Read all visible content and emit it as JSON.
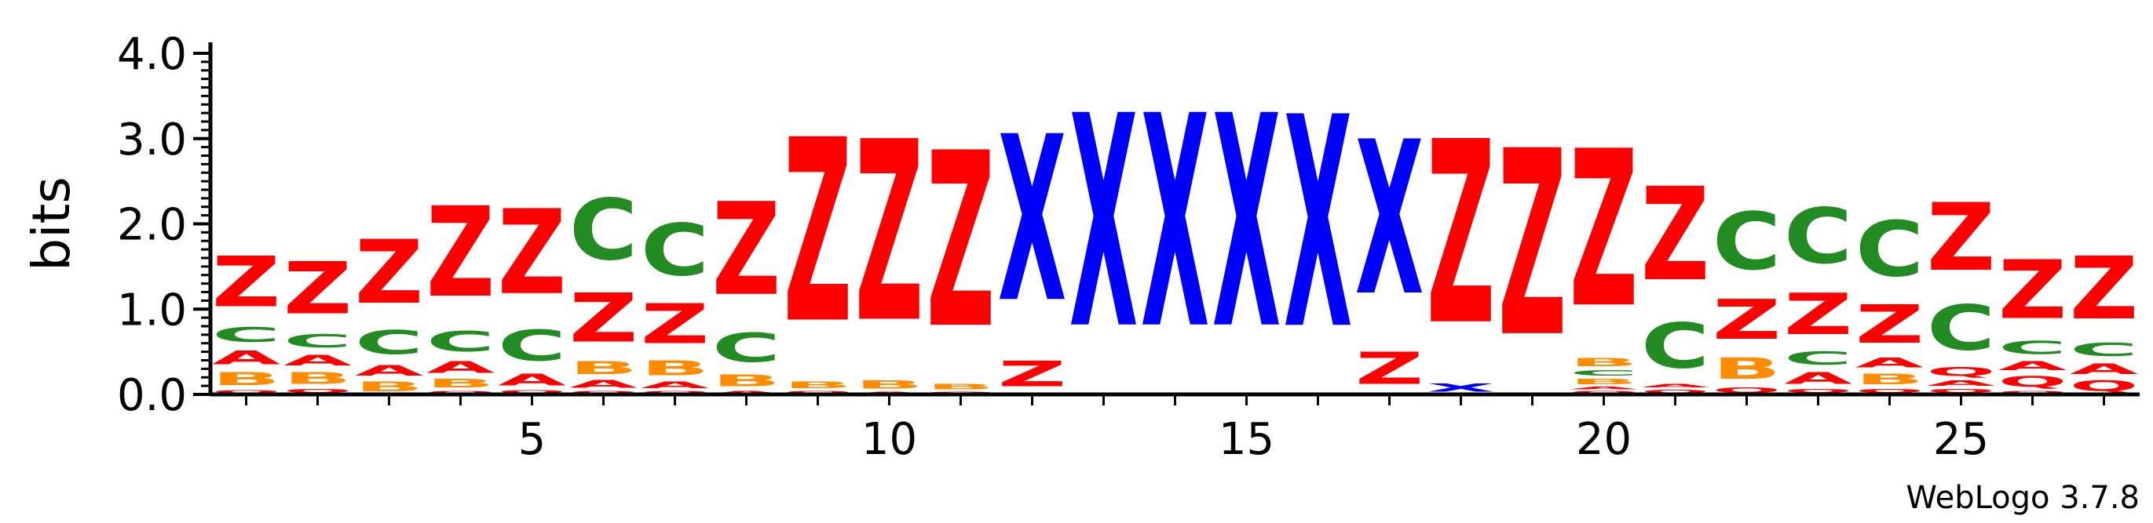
{
  "chart_data": {
    "type": "sequence-logo",
    "ylabel": "bits",
    "ylim": [
      0,
      4.0
    ],
    "yticks": [
      "0.0",
      "1.0",
      "2.0",
      "3.0",
      "4.0"
    ],
    "xticks": [
      5,
      10,
      15,
      20,
      25
    ],
    "credit": "WebLogo 3.7.8",
    "colors": {
      "Z": "#ff0000",
      "X": "#0000ff",
      "C": "#228b22",
      "A": "#ff0000",
      "B": "#ff8c00",
      "Q": "#ff0000"
    },
    "positions": [
      {
        "pos": 1,
        "letters": [
          [
            "Q",
            0.06
          ],
          [
            "B",
            0.24
          ],
          [
            "A",
            0.26
          ],
          [
            "C",
            0.28
          ],
          [
            "Z",
            0.95
          ]
        ]
      },
      {
        "pos": 2,
        "letters": [
          [
            "Q",
            0.08
          ],
          [
            "B",
            0.22
          ],
          [
            "A",
            0.2
          ],
          [
            "C",
            0.25
          ],
          [
            "Z",
            0.98
          ]
        ]
      },
      {
        "pos": 3,
        "letters": [
          [
            "B",
            0.18
          ],
          [
            "A",
            0.2
          ],
          [
            "C",
            0.45
          ],
          [
            "Z",
            1.2
          ]
        ]
      },
      {
        "pos": 4,
        "letters": [
          [
            "Q",
            0.05
          ],
          [
            "B",
            0.16
          ],
          [
            "A",
            0.22
          ],
          [
            "C",
            0.38
          ],
          [
            "Z",
            1.7
          ]
        ]
      },
      {
        "pos": 5,
        "letters": [
          [
            "Q",
            0.06
          ],
          [
            "A",
            0.22
          ],
          [
            "C",
            0.58
          ],
          [
            "Z",
            1.6
          ]
        ]
      },
      {
        "pos": 6,
        "letters": [
          [
            "Q",
            0.05
          ],
          [
            "A",
            0.14
          ],
          [
            "B",
            0.24
          ],
          [
            "Z",
            0.92
          ],
          [
            "C",
            1.15
          ]
        ]
      },
      {
        "pos": 7,
        "letters": [
          [
            "Q",
            0.05
          ],
          [
            "A",
            0.12
          ],
          [
            "B",
            0.28
          ],
          [
            "Z",
            0.75
          ],
          [
            "C",
            0.98
          ]
        ]
      },
      {
        "pos": 8,
        "letters": [
          [
            "A",
            0.05
          ],
          [
            "B",
            0.22
          ],
          [
            "C",
            0.55
          ],
          [
            "Z",
            1.75
          ]
        ]
      },
      {
        "pos": 9,
        "letters": [
          [
            "Q",
            0.05
          ],
          [
            "B",
            0.12
          ],
          [
            "Z",
            3.45
          ]
        ]
      },
      {
        "pos": 10,
        "letters": [
          [
            "A",
            0.04
          ],
          [
            "B",
            0.15
          ],
          [
            "Z",
            3.4
          ]
        ]
      },
      {
        "pos": 11,
        "letters": [
          [
            "Q",
            0.04
          ],
          [
            "B",
            0.1
          ],
          [
            "Z",
            3.3
          ]
        ]
      },
      {
        "pos": 12,
        "letters": [
          [
            "Z",
            0.48
          ],
          [
            "X",
            3.12
          ]
        ]
      },
      {
        "pos": 13,
        "letters": [
          [
            "X",
            4.0
          ]
        ]
      },
      {
        "pos": 14,
        "letters": [
          [
            "X",
            4.0
          ]
        ]
      },
      {
        "pos": 15,
        "letters": [
          [
            "X",
            4.0
          ]
        ]
      },
      {
        "pos": 16,
        "letters": [
          [
            "X",
            3.98
          ]
        ]
      },
      {
        "pos": 17,
        "letters": [
          [
            "Z",
            0.6
          ],
          [
            "X",
            2.9
          ]
        ]
      },
      {
        "pos": 18,
        "letters": [
          [
            "X",
            0.15
          ],
          [
            "Z",
            3.45
          ]
        ]
      },
      {
        "pos": 19,
        "letters": [
          [
            "Z",
            3.5
          ]
        ]
      },
      {
        "pos": 20,
        "letters": [
          [
            "Q",
            0.05
          ],
          [
            "A",
            0.05
          ],
          [
            "B",
            0.1
          ],
          [
            "C",
            0.1
          ],
          [
            "B",
            0.15
          ],
          [
            "Z",
            2.95
          ]
        ]
      },
      {
        "pos": 21,
        "letters": [
          [
            "Q",
            0.07
          ],
          [
            "A",
            0.07
          ],
          [
            "C",
            0.85
          ],
          [
            "Z",
            1.76
          ]
        ]
      },
      {
        "pos": 22,
        "letters": [
          [
            "Q",
            0.1
          ],
          [
            "B",
            0.4
          ],
          [
            "Z",
            0.75
          ],
          [
            "C",
            1.08
          ]
        ]
      },
      {
        "pos": 23,
        "letters": [
          [
            "Q",
            0.08
          ],
          [
            "A",
            0.22
          ],
          [
            "C",
            0.25
          ],
          [
            "Z",
            0.78
          ],
          [
            "C",
            1.05
          ]
        ]
      },
      {
        "pos": 24,
        "letters": [
          [
            "Q",
            0.08
          ],
          [
            "B",
            0.2
          ],
          [
            "A",
            0.18
          ],
          [
            "Z",
            0.72
          ],
          [
            "C",
            1.05
          ]
        ]
      },
      {
        "pos": 25,
        "letters": [
          [
            "Q",
            0.08
          ],
          [
            "A",
            0.1
          ],
          [
            "Q",
            0.17
          ],
          [
            "C",
            0.85
          ],
          [
            "Z",
            1.28
          ]
        ]
      },
      {
        "pos": 26,
        "letters": [
          [
            "Q",
            0.05
          ],
          [
            "Q",
            0.2
          ],
          [
            "A",
            0.17
          ],
          [
            "C",
            0.25
          ],
          [
            "Z",
            1.1
          ]
        ]
      },
      {
        "pos": 27,
        "letters": [
          [
            "Q",
            0.2
          ],
          [
            "A",
            0.2
          ],
          [
            "C",
            0.25
          ],
          [
            "Z",
            1.18
          ]
        ]
      }
    ]
  }
}
